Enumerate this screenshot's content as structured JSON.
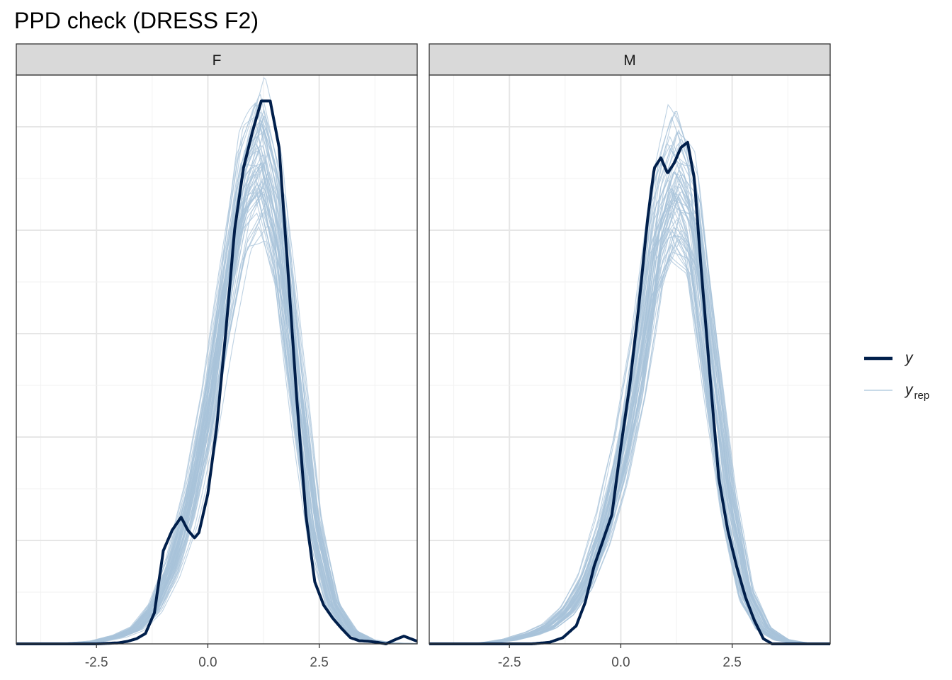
{
  "title": "PPD check (DRESS F2)",
  "colors": {
    "y": "#011f4b",
    "yrep": "#a8c3da",
    "strip_bg": "#d9d9d9",
    "grid_major": "#e6e6e6",
    "grid_minor": "#f2f2f2",
    "panel_border": "#333333"
  },
  "legend": {
    "position": "right",
    "items": [
      {
        "key": "y",
        "label": "y",
        "sub": ""
      },
      {
        "key": "yrep",
        "label": "y",
        "sub": "rep"
      }
    ]
  },
  "chart_data": {
    "type": "line",
    "plot_kind": "posterior predictive density overlay",
    "x_range": [
      -4.3,
      4.7
    ],
    "x_ticks": [
      -2.5,
      0.0,
      2.5
    ],
    "x_tick_labels": [
      "-2.5",
      "0.0",
      "2.5"
    ],
    "y_axis_labels": "none",
    "grid": true,
    "facets": [
      {
        "label": "F",
        "y_max": 1.1,
        "y_density": {
          "x": [
            -4.3,
            -3.0,
            -2.5,
            -2.0,
            -1.8,
            -1.6,
            -1.4,
            -1.2,
            -1.0,
            -0.8,
            -0.6,
            -0.45,
            -0.3,
            -0.2,
            0.0,
            0.2,
            0.4,
            0.6,
            0.8,
            1.0,
            1.2,
            1.4,
            1.6,
            1.8,
            2.0,
            2.2,
            2.4,
            2.6,
            2.8,
            3.0,
            3.2,
            3.4,
            3.6,
            3.8,
            4.0,
            4.2,
            4.4,
            4.7
          ],
          "y": [
            0.0,
            0.0,
            0.0,
            0.002,
            0.005,
            0.01,
            0.02,
            0.06,
            0.18,
            0.22,
            0.245,
            0.22,
            0.205,
            0.215,
            0.29,
            0.42,
            0.6,
            0.8,
            0.92,
            0.99,
            1.05,
            1.05,
            0.96,
            0.72,
            0.47,
            0.25,
            0.12,
            0.075,
            0.05,
            0.03,
            0.012,
            0.006,
            0.005,
            0.003,
            0.0,
            0.008,
            0.015,
            0.005
          ]
        },
        "yrep_draws": 60,
        "yrep_mean_density": {
          "x": [
            -4.3,
            -3.0,
            -2.5,
            -2.0,
            -1.6,
            -1.2,
            -0.8,
            -0.4,
            0.0,
            0.4,
            0.8,
            1.2,
            1.6,
            2.0,
            2.4,
            2.8,
            3.2,
            3.6,
            4.0,
            4.7
          ],
          "y": [
            0.0,
            0.002,
            0.005,
            0.015,
            0.03,
            0.07,
            0.15,
            0.27,
            0.44,
            0.67,
            0.88,
            0.95,
            0.8,
            0.5,
            0.23,
            0.08,
            0.025,
            0.007,
            0.002,
            0.0
          ]
        }
      },
      {
        "label": "M",
        "y_max": 1.1,
        "y_density": {
          "x": [
            -4.3,
            -3.0,
            -2.5,
            -2.0,
            -1.6,
            -1.3,
            -1.0,
            -0.8,
            -0.6,
            -0.4,
            -0.2,
            0.0,
            0.2,
            0.4,
            0.6,
            0.75,
            0.9,
            1.05,
            1.2,
            1.35,
            1.5,
            1.65,
            1.8,
            2.0,
            2.2,
            2.4,
            2.6,
            2.8,
            3.0,
            3.2,
            3.4,
            3.6,
            3.8,
            4.7
          ],
          "y": [
            0.0,
            0.0,
            0.0,
            0.0,
            0.003,
            0.012,
            0.035,
            0.08,
            0.15,
            0.2,
            0.25,
            0.38,
            0.5,
            0.65,
            0.82,
            0.92,
            0.94,
            0.91,
            0.93,
            0.96,
            0.97,
            0.9,
            0.73,
            0.52,
            0.32,
            0.22,
            0.15,
            0.09,
            0.045,
            0.01,
            0.0,
            0.0,
            0.0,
            0.0
          ]
        },
        "yrep_draws": 60,
        "yrep_mean_density": {
          "x": [
            -4.3,
            -3.0,
            -2.5,
            -2.0,
            -1.6,
            -1.2,
            -0.8,
            -0.4,
            0.0,
            0.4,
            0.8,
            1.2,
            1.6,
            2.0,
            2.4,
            2.8,
            3.2,
            3.6,
            4.0,
            4.7
          ],
          "y": [
            0.0,
            0.002,
            0.008,
            0.02,
            0.035,
            0.065,
            0.12,
            0.22,
            0.36,
            0.55,
            0.8,
            0.9,
            0.83,
            0.55,
            0.28,
            0.1,
            0.03,
            0.008,
            0.002,
            0.0
          ]
        }
      }
    ]
  }
}
